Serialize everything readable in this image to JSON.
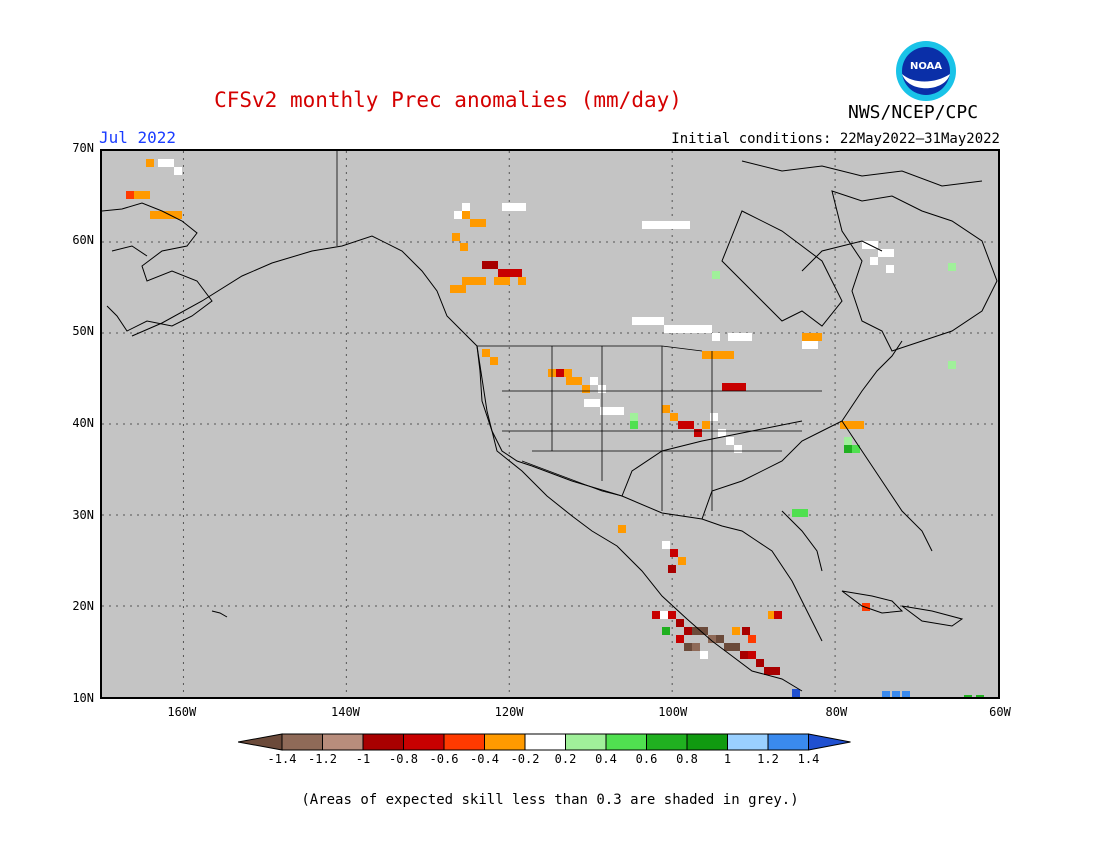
{
  "title": "CFSv2 monthly Prec anomalies (mm/day)",
  "agency": "NWS/NCEP/CPC",
  "logo_text": "NOAA",
  "month": "Jul 2022",
  "initial_conditions": "Initial conditions: 22May2022–31May2022",
  "lat_labels": [
    "70N",
    "60N",
    "50N",
    "40N",
    "30N",
    "20N",
    "10N"
  ],
  "lon_labels": [
    "160W",
    "140W",
    "120W",
    "100W",
    "80W",
    "60W"
  ],
  "colorbar": {
    "labels": [
      "-1.4",
      "-1.2",
      "-1",
      "-0.8",
      "-0.6",
      "-0.4",
      "-0.2",
      "0.2",
      "0.4",
      "0.6",
      "0.8",
      "1",
      "1.2",
      "1.4"
    ],
    "colors": [
      "#6b4a3a",
      "#8f6a58",
      "#b88d7c",
      "#a80000",
      "#c80000",
      "#ff3a00",
      "#ff9a00",
      "#ffffff",
      "#a0f09a",
      "#50e050",
      "#20b020",
      "#109a10",
      "#9ad0ff",
      "#3a8aee",
      "#2050d0"
    ]
  },
  "footnote": "(Areas of expected skill less than 0.3 are shaded in grey.)",
  "map": {
    "background": "#c4c4c4",
    "lon_range": [
      -170,
      -60
    ],
    "lat_range": [
      10,
      70
    ]
  }
}
